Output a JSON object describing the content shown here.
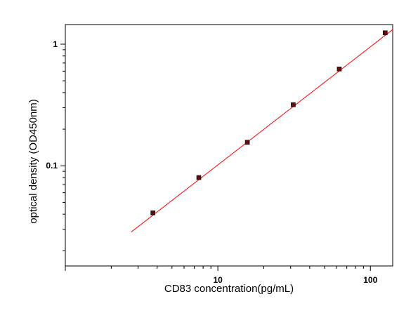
{
  "chart_data": {
    "type": "scatter",
    "xlabel": "CD83 concentration(pg/mL)",
    "ylabel": "optical density (OD450nm)",
    "xscale": "log",
    "yscale": "log",
    "xlim": [
      1.0,
      140
    ],
    "ylim": [
      0.015,
      1.45
    ],
    "x_tick_labels": [
      {
        "value": 10,
        "label": "10"
      },
      {
        "value": 100,
        "label": "100"
      }
    ],
    "y_tick_labels": [
      {
        "value": 0.1,
        "label": "0.1"
      },
      {
        "value": 1,
        "label": "1"
      }
    ],
    "series": [
      {
        "x": [
          3.75,
          7.5,
          15.6,
          31.2,
          62.5,
          125
        ],
        "y": [
          0.041,
          0.08,
          0.156,
          0.318,
          0.625,
          1.24
        ],
        "marker_color": "#5a1010"
      }
    ],
    "fit_line": {
      "x": [
        2.7,
        140
      ],
      "y": [
        0.0285,
        1.32
      ],
      "color": "#ff0000"
    },
    "grid": false
  }
}
